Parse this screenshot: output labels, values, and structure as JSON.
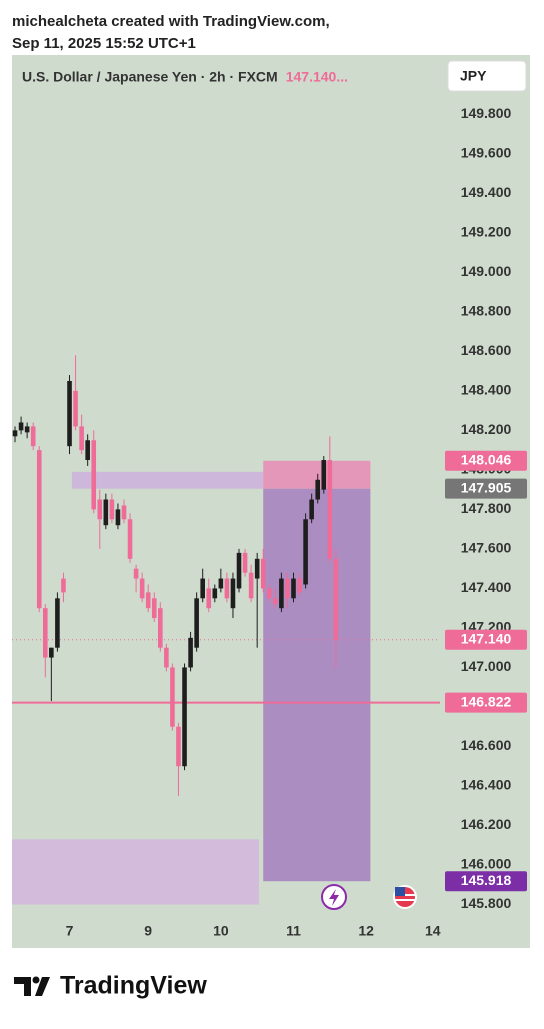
{
  "credit": "michealcheta created with TradingView.com,",
  "timestamp": "Sep 11, 2025 15:52 UTC+1",
  "brand": "TradingView",
  "chart_data": {
    "type": "candlestick",
    "title": "U.S. Dollar / Japanese Yen · 2h · FXCM",
    "last_price_label": "147.140...",
    "currency": "JPY",
    "up_color": "#1e1e1e",
    "down_color": "#ef6b98",
    "open": [
      148.17,
      148.2,
      148.19,
      148.22,
      148.1,
      147.3,
      147.05,
      147.1,
      147.45,
      148.12,
      148.4,
      148.22,
      148.05,
      148.15,
      147.85,
      147.72,
      147.85,
      147.72,
      147.82,
      147.75,
      147.5,
      147.45,
      147.38,
      147.35,
      147.3,
      147.1,
      147.0,
      146.7,
      146.5,
      147.0,
      147.1,
      147.35,
      147.4,
      147.35,
      147.4,
      147.45,
      147.3,
      147.4,
      147.58,
      147.48,
      147.45,
      147.55,
      147.4,
      147.35,
      147.3,
      147.45,
      147.35,
      147.45,
      147.42,
      147.75,
      147.85,
      147.9,
      148.05,
      147.55
    ],
    "high": [
      148.22,
      148.27,
      148.24,
      148.24,
      148.12,
      147.32,
      147.1,
      147.38,
      147.48,
      148.48,
      148.58,
      148.28,
      148.18,
      148.2,
      147.9,
      147.88,
      147.88,
      147.83,
      147.85,
      147.78,
      147.52,
      147.48,
      147.42,
      147.38,
      147.33,
      147.12,
      147.02,
      146.72,
      147.02,
      147.18,
      147.38,
      147.5,
      147.45,
      147.42,
      147.5,
      147.48,
      147.48,
      147.6,
      147.6,
      147.52,
      147.58,
      147.6,
      147.42,
      147.4,
      147.48,
      147.48,
      147.48,
      147.48,
      147.78,
      147.88,
      147.98,
      148.07,
      148.17,
      147.6
    ],
    "low": [
      148.14,
      148.18,
      148.16,
      148.1,
      147.28,
      146.95,
      146.83,
      147.08,
      147.33,
      148.08,
      148.2,
      148.08,
      148.02,
      147.78,
      147.6,
      147.7,
      147.73,
      147.7,
      147.73,
      147.53,
      147.38,
      147.33,
      147.28,
      147.23,
      147.08,
      146.98,
      146.68,
      146.35,
      146.48,
      146.98,
      147.08,
      147.33,
      147.28,
      147.33,
      147.38,
      147.33,
      147.25,
      147.38,
      147.46,
      147.33,
      147.1,
      147.38,
      147.33,
      147.3,
      147.28,
      147.3,
      147.33,
      147.36,
      147.4,
      147.73,
      147.83,
      147.88,
      147.53,
      147.0
    ],
    "close": [
      148.2,
      148.24,
      148.22,
      148.12,
      147.3,
      147.05,
      147.1,
      147.35,
      147.38,
      148.45,
      148.22,
      148.1,
      148.15,
      147.8,
      147.75,
      147.85,
      147.75,
      147.8,
      147.75,
      147.55,
      147.45,
      147.35,
      147.3,
      147.25,
      147.1,
      147.0,
      146.7,
      146.5,
      147.0,
      147.15,
      147.35,
      147.45,
      147.3,
      147.4,
      147.45,
      147.35,
      147.45,
      147.58,
      147.48,
      147.35,
      147.55,
      147.4,
      147.35,
      147.32,
      147.45,
      147.35,
      147.45,
      147.38,
      147.75,
      147.85,
      147.95,
      148.05,
      147.55,
      147.14
    ],
    "xlim": [
      -0.5,
      70.2
    ],
    "xticks": [
      {
        "value": 9,
        "label": "7"
      },
      {
        "value": 22,
        "label": "9"
      },
      {
        "value": 34,
        "label": "10"
      },
      {
        "value": 46,
        "label": "11"
      },
      {
        "value": 58,
        "label": "12"
      },
      {
        "value": 69,
        "label": "14"
      }
    ],
    "ylim": [
      145.58,
      150.1
    ],
    "yticks": [
      {
        "value": 145.8,
        "label": "145.800"
      },
      {
        "value": 146.0,
        "label": "146.000"
      },
      {
        "value": 146.2,
        "label": "146.200"
      },
      {
        "value": 146.4,
        "label": "146.400"
      },
      {
        "value": 146.6,
        "label": "146.600"
      },
      {
        "value": 146.8,
        "label": "146.800"
      },
      {
        "value": 147.0,
        "label": "147.000"
      },
      {
        "value": 147.2,
        "label": "147.200"
      },
      {
        "value": 147.4,
        "label": "147.400"
      },
      {
        "value": 147.6,
        "label": "147.600"
      },
      {
        "value": 147.8,
        "label": "147.800"
      },
      {
        "value": 148.0,
        "label": "148.000"
      },
      {
        "value": 148.2,
        "label": "148.200"
      },
      {
        "value": 148.4,
        "label": "148.400"
      },
      {
        "value": 148.6,
        "label": "148.600"
      },
      {
        "value": 148.8,
        "label": "148.800"
      },
      {
        "value": 149.0,
        "label": "149.000"
      },
      {
        "value": 149.2,
        "label": "149.200"
      },
      {
        "value": 149.4,
        "label": "149.400"
      },
      {
        "value": 149.6,
        "label": "149.600"
      },
      {
        "value": 149.8,
        "label": "149.800"
      }
    ],
    "zones": [
      {
        "x": [
          9.4,
          41
        ],
        "y": [
          147.905,
          147.99
        ],
        "color": "#cdb0dc"
      },
      {
        "x": [
          -0.5,
          40.3
        ],
        "y": [
          145.8,
          146.13
        ],
        "color": "#d3b6dd"
      },
      {
        "x": [
          41,
          58.7
        ],
        "y": [
          145.918,
          147.905
        ],
        "color": "#a47fbe"
      },
      {
        "x": [
          41,
          58.7
        ],
        "y": [
          147.905,
          148.046
        ],
        "color": "#e98bb5"
      }
    ],
    "markers": [
      {
        "value": 148.046,
        "label": "148.046",
        "color": "#ef6b98",
        "line": "none"
      },
      {
        "value": 147.905,
        "label": "147.905",
        "color": "#767676",
        "line": "none"
      },
      {
        "value": 147.14,
        "label": "147.140",
        "color": "#ef6b98",
        "line": "dotted"
      },
      {
        "value": 146.822,
        "label": "146.822",
        "color": "#ef6b98",
        "line": "solid"
      },
      {
        "value": 145.918,
        "label": "145.918",
        "color": "#7b2ea6",
        "line": "none"
      }
    ]
  }
}
